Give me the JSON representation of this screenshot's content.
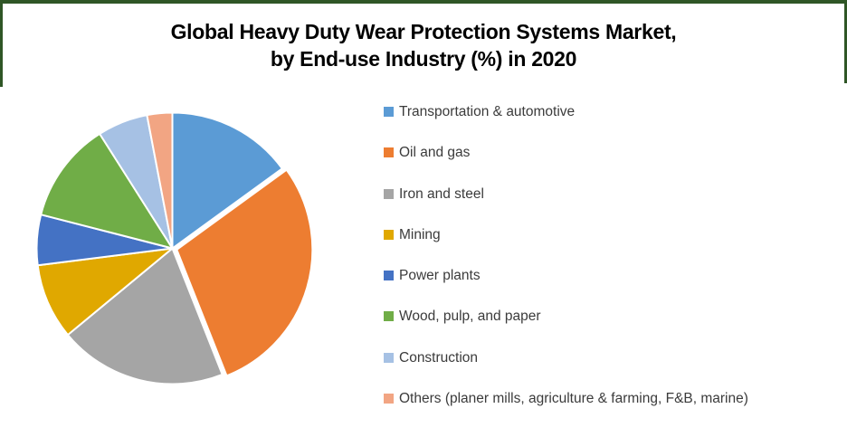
{
  "title": {
    "line1": "Global Heavy Duty Wear Protection Systems Market,",
    "line2": "by End-use Industry (%) in 2020"
  },
  "frame": {
    "border_color": "#2F5626"
  },
  "chart_data": {
    "type": "pie",
    "title": "Global Heavy Duty Wear Protection Systems Market, by End-use Industry (%) in 2020",
    "start_angle_deg": 0,
    "direction": "clockwise",
    "legend_position": "right",
    "data_labels": false,
    "slice_border_color": "#ffffff",
    "series": [
      {
        "label": "Transportation & automotive",
        "value": 15,
        "color": "#5B9BD5",
        "exploded": false
      },
      {
        "label": "Oil and gas",
        "value": 29,
        "color": "#ED7D31",
        "exploded": true
      },
      {
        "label": "Iron and steel",
        "value": 20,
        "color": "#A5A5A5",
        "exploded": false
      },
      {
        "label": "Mining",
        "value": 9,
        "color": "#E0A800",
        "exploded": false
      },
      {
        "label": "Power plants",
        "value": 6,
        "color": "#4472C4",
        "exploded": false
      },
      {
        "label": "Wood, pulp, and paper",
        "value": 12,
        "color": "#70AD47",
        "exploded": false
      },
      {
        "label": "Construction",
        "value": 6,
        "color": "#A6C1E4",
        "exploded": false
      },
      {
        "label": "Others (planer mills, agriculture & farming, F&B, marine)",
        "value": 3,
        "color": "#F2A583",
        "exploded": false
      }
    ]
  }
}
